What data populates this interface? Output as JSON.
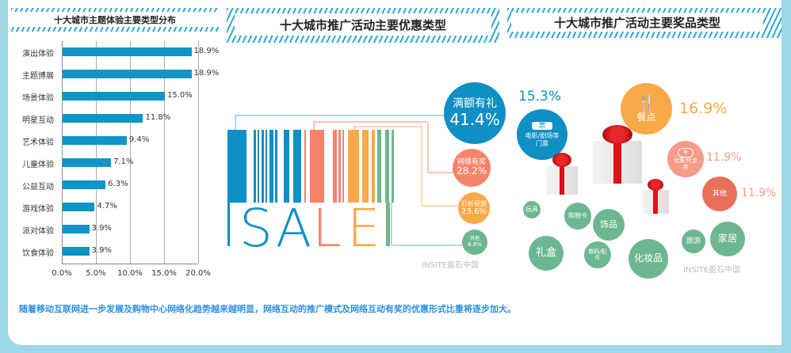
{
  "chart_data": {
    "type": "bar",
    "orientation": "horizontal",
    "title": "十大城市主题体验主要类型分布",
    "categories": [
      "演出体验",
      "主题博展",
      "场景体验",
      "明星互动",
      "艺术体验",
      "儿童体验",
      "公益互动",
      "游戏体验",
      "派对体验",
      "饮食体验"
    ],
    "values": [
      18.9,
      18.9,
      15.0,
      11.8,
      9.4,
      7.1,
      6.3,
      4.7,
      3.9,
      3.9
    ],
    "value_labels": [
      "18.9%",
      "18.9%",
      "15.0%",
      "11.8%",
      "9.4%",
      "7.1%",
      "6.3%",
      "4.7%",
      "3.9%",
      "3.9%"
    ],
    "xticks": [
      "0.0%",
      "5.0%",
      "10.0%",
      "15.0%",
      "20.0%"
    ],
    "xlim": [
      0,
      20
    ],
    "grid": true,
    "bar_color": "#0f95c6"
  },
  "promo": {
    "title": "十大城市推广活动主要优惠类型",
    "word": [
      "S",
      "A",
      "L",
      "E"
    ],
    "items": [
      {
        "label": "满额有礼",
        "value": "41.4%",
        "color": "#0f8fc4"
      },
      {
        "label": "网络有奖",
        "value": "28.2%",
        "color": "#f7836a"
      },
      {
        "label": "打折促销",
        "value": "23.6%",
        "color": "#f9a947"
      },
      {
        "label": "其他",
        "value": "6.8%",
        "color": "#6cb791"
      }
    ],
    "watermark": "INSITE盈石中国"
  },
  "prize": {
    "title": "十大城市推广活动主要奖品类型",
    "ticket": {
      "icon": "票",
      "label": "电影/剧场等门票",
      "value": "15.3%",
      "color": "#0f8fc4"
    },
    "food": {
      "label": "餐点",
      "value": "16.9%",
      "color": "#f9a947"
    },
    "coupon": {
      "icon": "¥",
      "label": "优惠/代金券",
      "value": "11.9%",
      "color": "#f69a8a"
    },
    "other": {
      "label": "其他",
      "value": "11.9%",
      "color": "#e6705a"
    },
    "small": [
      "玩具",
      "购物卡",
      "饰品",
      "礼盒",
      "数码/配件",
      "化妆品",
      "旅游",
      "家居"
    ],
    "small_color": "#6cb791",
    "watermark": "INSITE盈石中国"
  },
  "footer": {
    "text": "随着移动互联网进一步发展及购物中心网络化趋势越来越明显，网络互动的推广模式及网络互动有奖的优惠形式比重将逐步加大。"
  }
}
